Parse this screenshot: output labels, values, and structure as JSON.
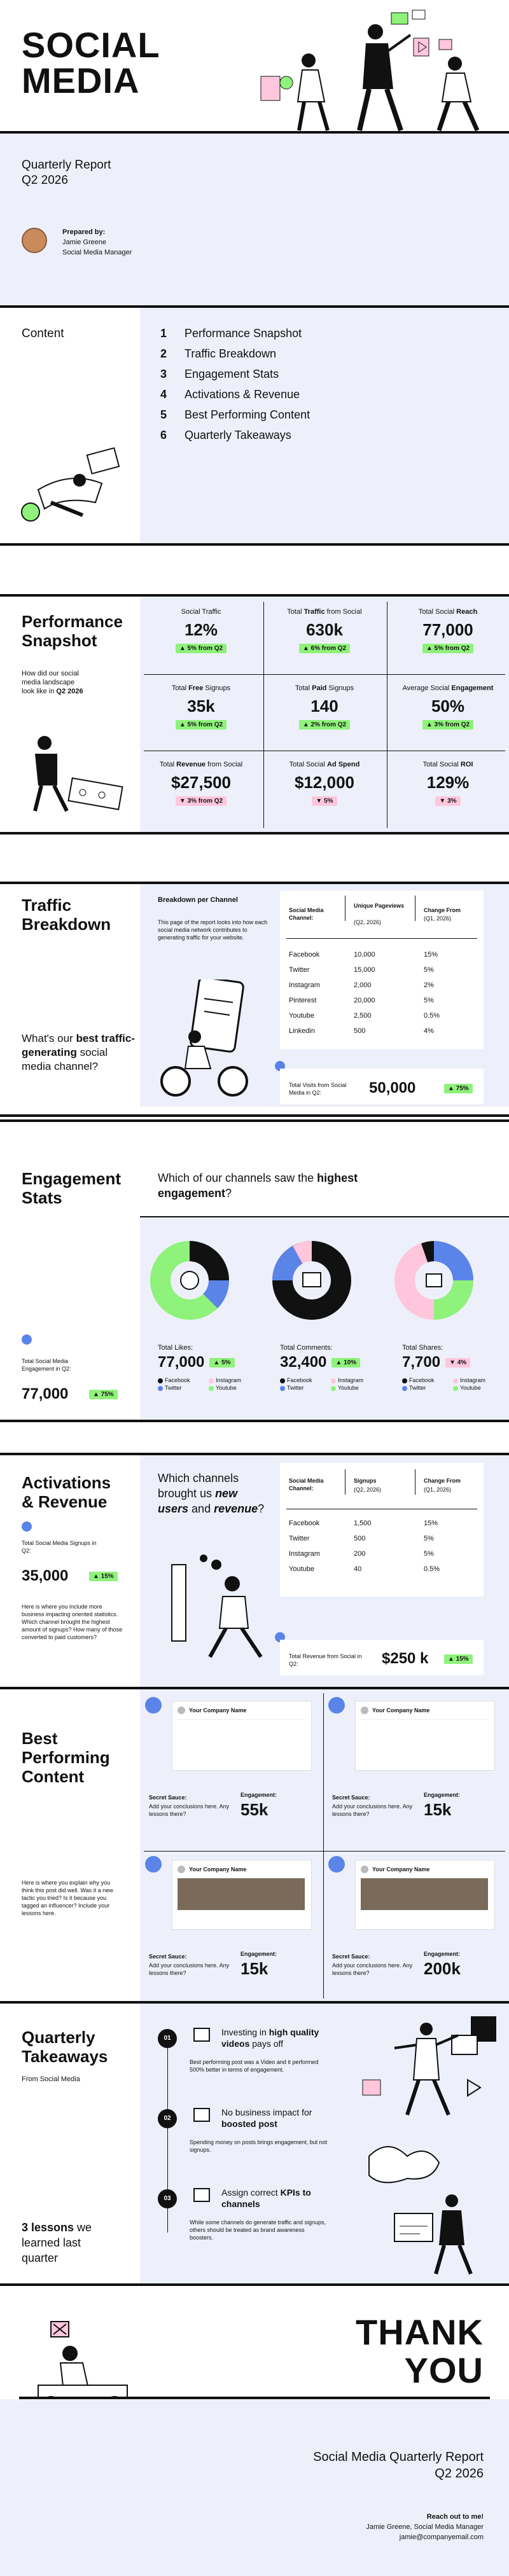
{
  "cover": {
    "title_line1": "SOCIAL",
    "title_line2": "MEDIA",
    "report_line1": "Quarterly Report",
    "report_line2": "Q2 2026",
    "prepared_label": "Prepared by:",
    "prepared_name": "Jamie Greene",
    "prepared_role": "Social Media Manager"
  },
  "contents": {
    "heading": "Content",
    "items": [
      {
        "num": "1",
        "label": "Performance Snapshot"
      },
      {
        "num": "2",
        "label": "Traffic Breakdown"
      },
      {
        "num": "3",
        "label": "Engagement Stats"
      },
      {
        "num": "4",
        "label": "Activations & Revenue"
      },
      {
        "num": "5",
        "label": "Best Performing Content"
      },
      {
        "num": "6",
        "label": "Quarterly Takeaways"
      }
    ]
  },
  "snapshot": {
    "title_line1": "Performance",
    "title_line2": "Snapshot",
    "desc_line1": "How did our social",
    "desc_line2": "media landscape",
    "desc_line3_pre": "look like in ",
    "desc_line3_bold": "Q2 2026",
    "metrics": [
      {
        "label_pre": "Social Traffic",
        "label_bold": "",
        "label_post": "",
        "value": "12%",
        "change": "▲ 5% from Q2",
        "dir": "up"
      },
      {
        "label_pre": "Total ",
        "label_bold": "Traffic",
        "label_post": " from Social",
        "value": "630k",
        "change": "▲ 6% from Q2",
        "dir": "up"
      },
      {
        "label_pre": "Total Social ",
        "label_bold": "Reach",
        "label_post": "",
        "value": "77,000",
        "change": "▲ 5% from Q2",
        "dir": "up"
      },
      {
        "label_pre": "Total ",
        "label_bold": "Free",
        "label_post": " Signups",
        "value": "35k",
        "change": "▲ 5% from Q2",
        "dir": "up"
      },
      {
        "label_pre": "Total ",
        "label_bold": "Paid",
        "label_post": " Signups",
        "value": "140",
        "change": "▲ 2% from Q2",
        "dir": "up"
      },
      {
        "label_pre": "Average Social ",
        "label_bold": "Engagement",
        "label_post": "",
        "value": "50%",
        "change": "▲ 3% from Q2",
        "dir": "up"
      },
      {
        "label_pre": "Total ",
        "label_bold": "Revenue",
        "label_post": " from Social",
        "value": "$27,500",
        "change": "▼ 3% from Q2",
        "dir": "down"
      },
      {
        "label_pre": "Total Social ",
        "label_bold": "Ad Spend",
        "label_post": "",
        "value": "$12,000",
        "change": "▼ 5%",
        "dir": "down"
      },
      {
        "label_pre": "Total Social ",
        "label_bold": "ROI",
        "label_post": "",
        "value": "129%",
        "change": "▼ 3%",
        "dir": "down"
      }
    ]
  },
  "traffic": {
    "title_line1": "Traffic",
    "title_line2": "Breakdown",
    "question_pre": "What's our ",
    "question_bold": "best traffic-generating",
    "question_post": " social media channel?",
    "panel_title": "Breakdown per Channel",
    "panel_desc": "This page of the report looks into how each social media network contributes to generating traffic for your website.",
    "col1": "Social Media Channel:",
    "col2": "Unique Pageviews",
    "col2_sub": "(Q2, 2026)",
    "col3": "Change From",
    "col3_sub": "(Q1, 2026)",
    "rows": [
      {
        "channel": "Facebook",
        "views": "10,000",
        "change": "15%"
      },
      {
        "channel": "Twitter",
        "views": "15,000",
        "change": "5%"
      },
      {
        "channel": "Instagram",
        "views": "2,000",
        "change": "2%"
      },
      {
        "channel": "Pinterest",
        "views": "20,000",
        "change": "5%"
      },
      {
        "channel": "Youtube",
        "views": "2,500",
        "change": "0.5%"
      },
      {
        "channel": "Linkedin",
        "views": "500",
        "change": "4%"
      }
    ],
    "total_label": "Total Visits from Social Media in Q2:",
    "total_value": "50,000",
    "total_change": "▲ 75%"
  },
  "engagement": {
    "title_line1": "Engagement",
    "title_line2": "Stats",
    "question_pre": "Which of our channels saw the ",
    "question_bold": "highest engagement",
    "question_post": "?",
    "side_label": "Total Social Media Engagement in Q2:",
    "side_value": "77,000",
    "side_change": "▲ 75%",
    "donuts": [
      {
        "label": "Total Likes:",
        "value": "77,000",
        "change": "▲ 5%",
        "dir": "up"
      },
      {
        "label": "Total Comments:",
        "value": "32,400",
        "change": "▲ 10%",
        "dir": "up"
      },
      {
        "label": "Total Shares:",
        "value": "7,700",
        "change": "▼ 4%",
        "dir": "down"
      }
    ],
    "legend": [
      "Facebook",
      "Instagram",
      "Twitter",
      "Youtube"
    ]
  },
  "activations": {
    "title_line1": "Activations",
    "title_line2": "& Revenue",
    "side_label": "Total Social Media Signups in Q2:",
    "side_value": "35,000",
    "side_change": "▲ 15%",
    "side_desc": "Here is where you include more business impacting oriented statistics. Which channel brought the highest amount of signups? How many of those converted to paid customers?",
    "question_pre": "Which channels brought us ",
    "question_bold1": "new users",
    "question_mid": " and ",
    "question_bold2": "revenue",
    "question_post": "?",
    "col1": "Social Media Channel:",
    "col2": "Signups",
    "col2_sub": "(Q2, 2026)",
    "col3": "Change From",
    "col3_sub": "(Q1, 2026)",
    "rows": [
      {
        "channel": "Facebook",
        "signups": "1,500",
        "change": "15%"
      },
      {
        "channel": "Twitter",
        "signups": "500",
        "change": "5%"
      },
      {
        "channel": "Instagram",
        "signups": "200",
        "change": "5%"
      },
      {
        "channel": "Youtube",
        "signups": "40",
        "change": "0.5%"
      }
    ],
    "total_label": "Total Revenue from Social in Q2:",
    "total_value": "$250 k",
    "total_change": "▲ 15%"
  },
  "best": {
    "title_line1": "Best",
    "title_line2": "Performing",
    "title_line3": "Content",
    "side_desc": "Here is where you explain why you think this post did well. Was it a new tactic you tried? Is it because you tagged an influencer? Include your lessons here.",
    "company": "Your Company Name",
    "sauce_label": "Secret Sauce:",
    "sauce_text": "Add your conclusions here. Any lessons there?",
    "engagement_label": "Engagement:",
    "posts": [
      {
        "network": "facebook",
        "engagement": "55k"
      },
      {
        "network": "twitter",
        "engagement": "15k"
      },
      {
        "network": "instagram",
        "engagement": "15k"
      },
      {
        "network": "linkedin",
        "engagement": "200k"
      }
    ]
  },
  "takeaways": {
    "title_line1": "Quarterly",
    "title_line2": "Takeaways",
    "subtitle": "From Social Media",
    "lessons_line1": "3 lessons",
    "lessons_line2": " we",
    "lessons_line3": "learned last",
    "lessons_line4": "quarter",
    "items": [
      {
        "num": "01",
        "head_pre": "Investing in ",
        "head_bold": "high quality videos",
        "head_post": " pays off",
        "desc": "Best performing post was a Video and it performed 500% better in terms of engagement."
      },
      {
        "num": "02",
        "head_pre": "No business impact for ",
        "head_bold": "boosted post",
        "head_post": "",
        "desc": "Spending money on posts brings engagement, but not signups."
      },
      {
        "num": "03",
        "head_pre": "Assign correct ",
        "head_bold": "KPIs to channels",
        "head_post": "",
        "desc": "While some channels do generate traffic and signups, others should be treated as brand awareness boosters."
      }
    ]
  },
  "closing": {
    "thank": "THANK",
    "you": "YOU",
    "report_line1": "Social Media Quarterly Report",
    "report_line2": "Q2 2026",
    "reach": "Reach out to me!",
    "name": "Jamie Greene, Social Media Manager",
    "email": "jamie@companyemail.com"
  },
  "colors": {
    "lilac": "#edf0fb",
    "green": "#8ff27a",
    "pink": "#ffc6dc",
    "blue": "#5b84e8",
    "black": "#111111"
  }
}
